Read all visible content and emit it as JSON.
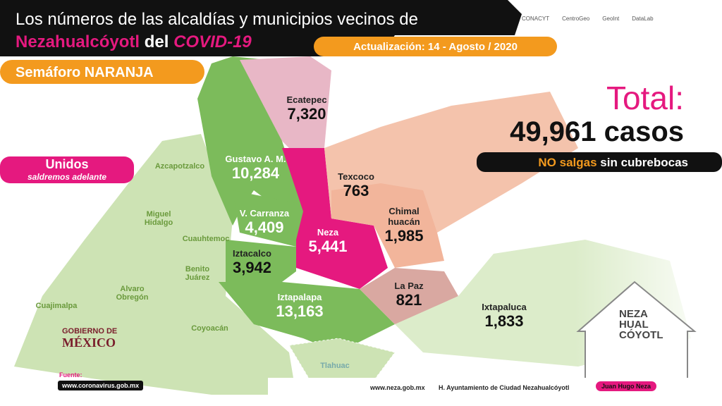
{
  "header": {
    "title_line1": "Los números de las alcaldías y municipios vecinos de",
    "title_place": "Nezahualcóyotl",
    "title_del": "del",
    "title_covid": "COVID-19",
    "update": "Actualización: 14 - Agosto / 2020",
    "semaforo": "Semáforo NARANJA",
    "logos": [
      "CONACYT",
      "CentroGeo",
      "GeoInt",
      "DataLab"
    ]
  },
  "slogan": {
    "line1": "Unidos",
    "line2": "saldremos adelante"
  },
  "total": {
    "label": "Total:",
    "cases": "49,961 casos",
    "warning_emphasis": "NO salgas",
    "warning_rest": "sin cubrebocas"
  },
  "regions": [
    {
      "name": "Ecatepec",
      "cases": "7,320"
    },
    {
      "name": "Gustavo A. M.",
      "cases": "10,284"
    },
    {
      "name": "Texcoco",
      "cases": "763"
    },
    {
      "name": "V. Carranza",
      "cases": "4,409"
    },
    {
      "name": "Chimal huacán",
      "cases": "1,985"
    },
    {
      "name": "Neza",
      "cases": "5,441"
    },
    {
      "name": "Iztacalco",
      "cases": "3,942"
    },
    {
      "name": "La Paz",
      "cases": "821"
    },
    {
      "name": "Iztapalapa",
      "cases": "13,163"
    },
    {
      "name": "Ixtapaluca",
      "cases": "1,833"
    }
  ],
  "other_regions": [
    "Azcapotzalco",
    "Miguel Hidalgo",
    "Cuauhtemoc",
    "Benito Juárez",
    "Alvaro Obregón",
    "Cuajimalpa",
    "Coyoacán",
    "Tlahuac"
  ],
  "government": {
    "line1": "GOBIERNO DE",
    "line2": "MÉXICO"
  },
  "neza_logo": [
    "NEZA",
    "HUAL",
    "CÓYOTL"
  ],
  "footer": {
    "source_label": "Fuente:",
    "source_url": "www.coronavirus.gob.mx",
    "site": "www.neza.gob.mx",
    "facebook": "H. Ayuntamiento de Ciudad Nezahualcóyotl",
    "instagram": "Juan Hugo Neza"
  }
}
